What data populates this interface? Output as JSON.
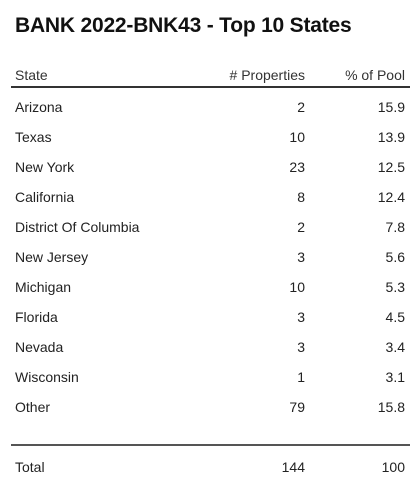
{
  "title": "BANK 2022-BNK43 - Top 10 States",
  "table": {
    "headers": {
      "state": "State",
      "properties": "# Properties",
      "pct_pool": "% of Pool"
    },
    "rows": [
      {
        "state": "Arizona",
        "properties": "2",
        "pct_pool": "15.9"
      },
      {
        "state": "Texas",
        "properties": "10",
        "pct_pool": "13.9"
      },
      {
        "state": "New York",
        "properties": "23",
        "pct_pool": "12.5"
      },
      {
        "state": "California",
        "properties": "8",
        "pct_pool": "12.4"
      },
      {
        "state": "District Of Columbia",
        "properties": "2",
        "pct_pool": "7.8"
      },
      {
        "state": "New Jersey",
        "properties": "3",
        "pct_pool": "5.6"
      },
      {
        "state": "Michigan",
        "properties": "10",
        "pct_pool": "5.3"
      },
      {
        "state": "Florida",
        "properties": "3",
        "pct_pool": "4.5"
      },
      {
        "state": "Nevada",
        "properties": "3",
        "pct_pool": "3.4"
      },
      {
        "state": "Wisconsin",
        "properties": "1",
        "pct_pool": "3.1"
      },
      {
        "state": "Other",
        "properties": "79",
        "pct_pool": "15.8"
      }
    ],
    "total": {
      "label": "Total",
      "properties": "144",
      "pct_pool": "100"
    }
  }
}
